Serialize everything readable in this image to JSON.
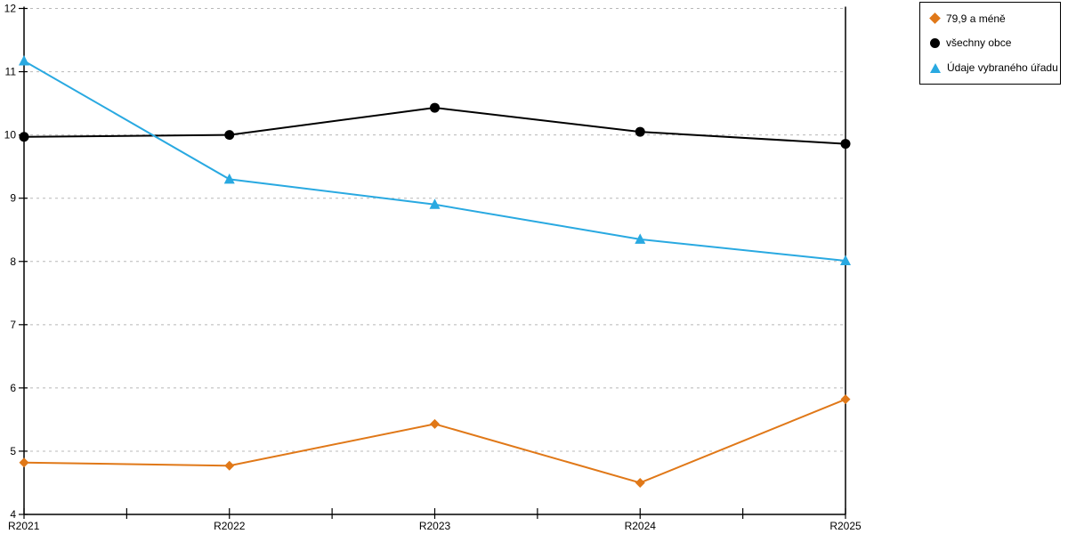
{
  "chart_data": {
    "type": "line",
    "title": "",
    "xlabel": "",
    "ylabel": "",
    "categories": [
      "R2021",
      "R2022",
      "R2023",
      "R2024",
      "R2025"
    ],
    "series": [
      {
        "name": "79,9 a méně",
        "marker": "diamond",
        "color": "#E07818",
        "values": [
          4.82,
          4.77,
          5.43,
          4.5,
          5.82
        ]
      },
      {
        "name": "všechny obce",
        "marker": "circle",
        "color": "#000000",
        "values": [
          9.97,
          10.0,
          10.43,
          10.05,
          9.86
        ]
      },
      {
        "name": "Údaje vybraného úřadu",
        "marker": "triangle",
        "color": "#29A9E1",
        "values": [
          11.17,
          9.3,
          8.9,
          8.35,
          8.01
        ]
      }
    ],
    "ylim": [
      4,
      12
    ],
    "yticks": [
      4,
      5,
      6,
      7,
      8,
      9,
      10,
      11,
      12
    ],
    "x_minor_ticks": "midpoints",
    "grid": "horizontal-dashed",
    "legend_position": "top-right"
  },
  "colors": {
    "background": "#ffffff",
    "axis": "#000000",
    "grid": "#b8b8b8",
    "tick_label": "#000000"
  }
}
